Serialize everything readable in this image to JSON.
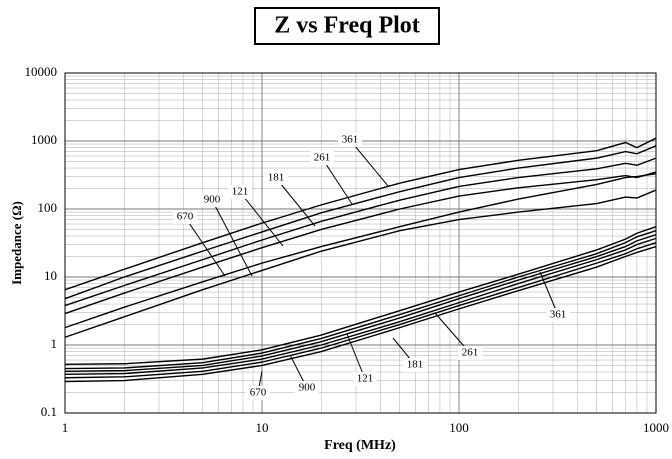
{
  "chart_data": {
    "type": "line",
    "title": "Z vs Freq Plot",
    "xlabel": "Freq (MHz)",
    "ylabel": "Impedance (Ω)",
    "log_x": true,
    "log_y": true,
    "grid": true,
    "x": [
      1,
      2,
      5,
      10,
      20,
      50,
      100,
      200,
      500,
      700,
      800,
      1000
    ],
    "xlim": [
      1,
      1000
    ],
    "ylim": [
      0.1,
      10000
    ],
    "xticks": [
      1,
      10,
      100,
      1000
    ],
    "yticks": [
      0.1,
      1,
      10,
      100,
      1000,
      10000
    ],
    "series": [
      {
        "name": "361",
        "color": "#000000",
        "values": [
          6.5,
          13,
          32,
          62,
          115,
          240,
          380,
          520,
          720,
          950,
          800,
          1100
        ]
      },
      {
        "name": "261",
        "color": "#000000",
        "values": [
          4.8,
          10,
          24,
          46,
          88,
          180,
          290,
          400,
          560,
          700,
          650,
          850
        ]
      },
      {
        "name": "181",
        "color": "#000000",
        "values": [
          3.8,
          7.5,
          18,
          35,
          66,
          135,
          215,
          290,
          390,
          470,
          440,
          560
        ]
      },
      {
        "name": "121",
        "color": "#000000",
        "values": [
          2.9,
          5.8,
          14,
          27,
          50,
          100,
          155,
          205,
          270,
          310,
          290,
          350
        ]
      },
      {
        "name": "900",
        "color": "#000000",
        "values": [
          1.8,
          3.6,
          8.5,
          16,
          28,
          55,
          90,
          140,
          230,
          290,
          300,
          330
        ]
      },
      {
        "name": "670",
        "color": "#000000",
        "values": [
          1.3,
          2.6,
          6.5,
          12.5,
          24,
          48,
          70,
          90,
          120,
          150,
          145,
          190
        ]
      },
      {
        "name": "361",
        "color": "#000000",
        "values": [
          0.52,
          0.53,
          0.62,
          0.85,
          1.4,
          3.2,
          6,
          11,
          25,
          36,
          44,
          55
        ]
      },
      {
        "name": "261",
        "color": "#000000",
        "values": [
          0.45,
          0.46,
          0.55,
          0.76,
          1.25,
          2.8,
          5.3,
          10,
          22,
          32,
          39,
          48
        ]
      },
      {
        "name": "181",
        "color": "#000000",
        "values": [
          0.41,
          0.42,
          0.5,
          0.69,
          1.12,
          2.5,
          4.8,
          9,
          20,
          28,
          34,
          42
        ]
      },
      {
        "name": "121",
        "color": "#000000",
        "values": [
          0.37,
          0.38,
          0.46,
          0.62,
          1.0,
          2.2,
          4.2,
          8,
          18,
          25,
          30,
          37
        ]
      },
      {
        "name": "900",
        "color": "#000000",
        "values": [
          0.33,
          0.34,
          0.41,
          0.56,
          0.9,
          2.0,
          3.8,
          7,
          16,
          22,
          26,
          32
        ]
      },
      {
        "name": "670",
        "color": "#000000",
        "values": [
          0.29,
          0.3,
          0.37,
          0.5,
          0.8,
          1.8,
          3.4,
          6.3,
          14,
          20,
          23,
          28
        ]
      }
    ]
  }
}
